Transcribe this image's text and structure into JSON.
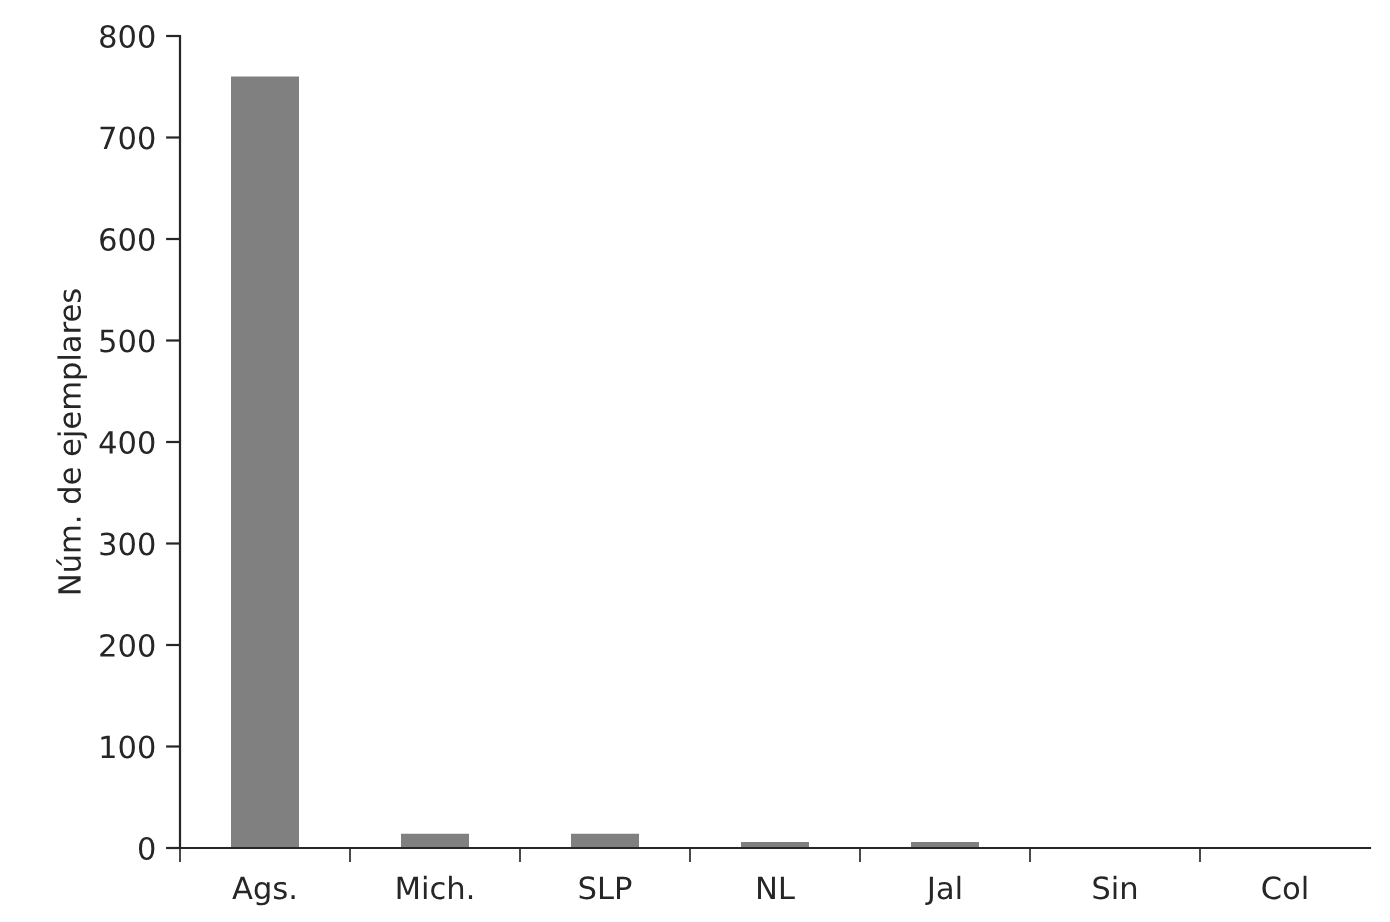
{
  "chart_data": {
    "type": "bar",
    "ylabel": "Núm. de ejemplares",
    "categories": [
      "Ags.",
      "Mich.",
      "SLP",
      "NL",
      "Jal",
      "Sin",
      "Col"
    ],
    "values": [
      760,
      14,
      14,
      6,
      6,
      0,
      0
    ],
    "color": "#808080",
    "ylim": [
      0,
      800
    ],
    "yticks": [
      0,
      100,
      200,
      300,
      400,
      500,
      600,
      700,
      800
    ],
    "grid": false
  }
}
